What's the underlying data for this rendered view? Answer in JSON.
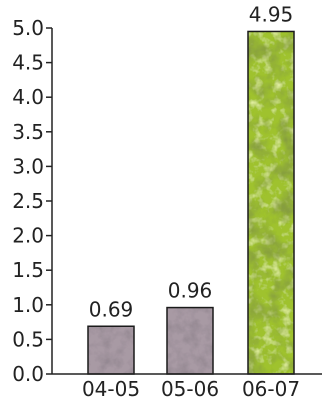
{
  "chart_data": {
    "type": "bar",
    "title": "",
    "xlabel": "",
    "ylabel": "",
    "categories": [
      "04-05",
      "05-06",
      "06-07"
    ],
    "values": [
      0.69,
      0.96,
      4.95
    ],
    "value_labels": [
      "0.69",
      "0.96",
      "4.95"
    ],
    "ylim": [
      0,
      5.0
    ],
    "yticks": [
      0.0,
      0.5,
      1.0,
      1.5,
      2.0,
      2.5,
      3.0,
      3.5,
      4.0,
      4.5,
      5.0
    ],
    "ytick_labels": [
      "0.0",
      "0.5",
      "1.0",
      "1.5",
      "2.0",
      "2.5",
      "3.0",
      "3.5",
      "4.0",
      "4.5",
      "5.0"
    ],
    "grid": false,
    "bar_textures": [
      "stone-gray",
      "stone-gray",
      "moss-green"
    ],
    "colors": {
      "axis": "#222222",
      "stone_base": "#a89aa4",
      "stone_dark": "#4a3e48",
      "stone_light": "#e6dee4",
      "moss_base": "#9fc22e",
      "moss_dark": "#3f5a10",
      "moss_light": "#d8ec6a"
    }
  }
}
